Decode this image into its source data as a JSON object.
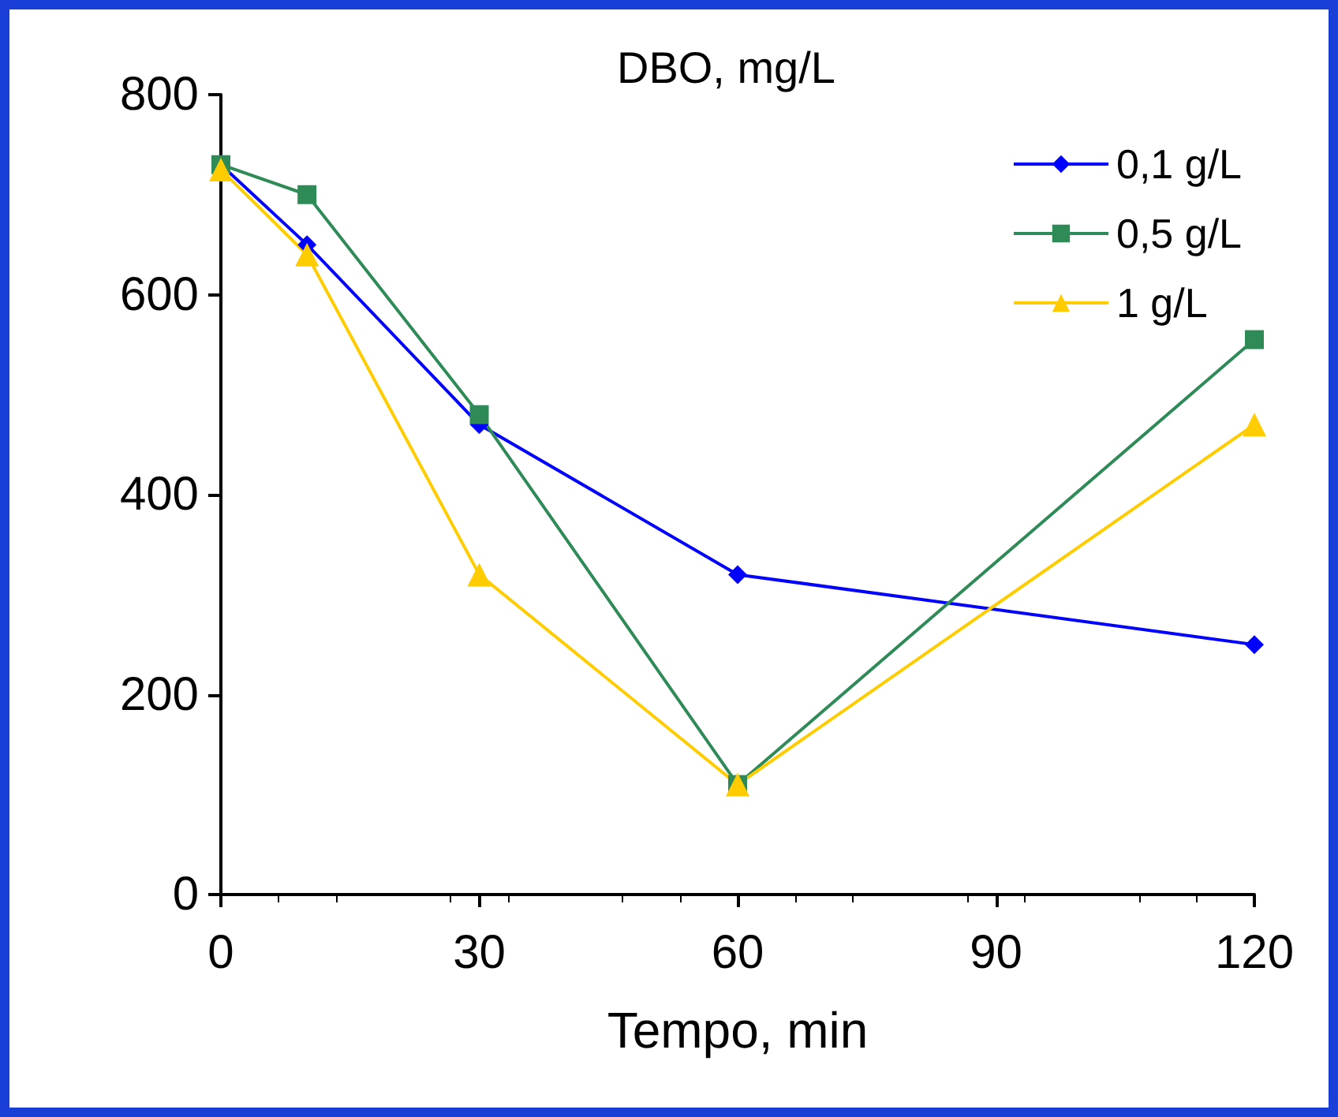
{
  "chart_data": {
    "type": "line",
    "title": "DBO, mg/L",
    "xlabel": "Tempo, min",
    "x": [
      0,
      10,
      30,
      60,
      120
    ],
    "series": [
      {
        "name": "0,1 g/L",
        "color": "#0000ff",
        "marker": "diamond",
        "values": [
          730,
          650,
          470,
          320,
          250
        ]
      },
      {
        "name": "0,5 g/L",
        "color": "#2e8b57",
        "marker": "square",
        "values": [
          730,
          700,
          480,
          110,
          555
        ]
      },
      {
        "name": "1 g/L",
        "color": "#ffcc00",
        "marker": "triangle",
        "values": [
          725,
          640,
          320,
          110,
          470
        ]
      }
    ],
    "xlim": [
      0,
      120
    ],
    "xticks": [
      0,
      30,
      60,
      90,
      120
    ],
    "ylim": [
      0,
      800
    ],
    "yticks": [
      0,
      200,
      400,
      600,
      800
    ],
    "grid": false,
    "legend": "top right"
  }
}
